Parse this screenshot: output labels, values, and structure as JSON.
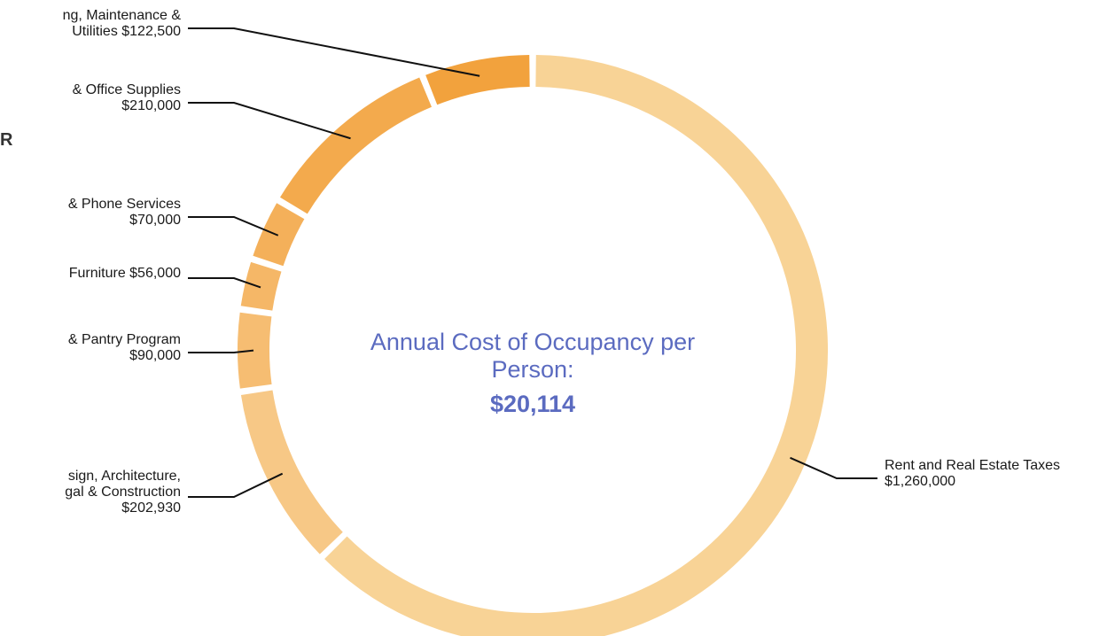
{
  "page": {
    "edge_glyph": "R"
  },
  "center": {
    "title_line1": "Annual Cost of Occupancy per",
    "title_line2": "Person:",
    "value": "$20,114"
  },
  "chart_data": {
    "type": "pie",
    "style": "donut",
    "title": "",
    "slices": [
      {
        "label_lines": [
          "Rent and Real Estate Taxes",
          "$1,260,000"
        ],
        "value": 1260000,
        "color": "#f8d396"
      },
      {
        "label_lines": [
          "sign, Architecture,",
          "gal & Construction",
          "$202,930"
        ],
        "value": 202930,
        "color": "#f7c886"
      },
      {
        "label_lines": [
          "& Pantry Program",
          "$90,000"
        ],
        "value": 90000,
        "color": "#f6bd72"
      },
      {
        "label_lines": [
          "Furniture $56,000"
        ],
        "value": 56000,
        "color": "#f5b767"
      },
      {
        "label_lines": [
          "& Phone Services",
          "$70,000"
        ],
        "value": 70000,
        "color": "#f4b05a"
      },
      {
        "label_lines": [
          "& Office Supplies",
          "$210,000"
        ],
        "value": 210000,
        "color": "#f3aa4d"
      },
      {
        "label_lines": [
          "ng, Maintenance &",
          "Utilities $122,500"
        ],
        "value": 122500,
        "color": "#f2a23d"
      }
    ]
  }
}
